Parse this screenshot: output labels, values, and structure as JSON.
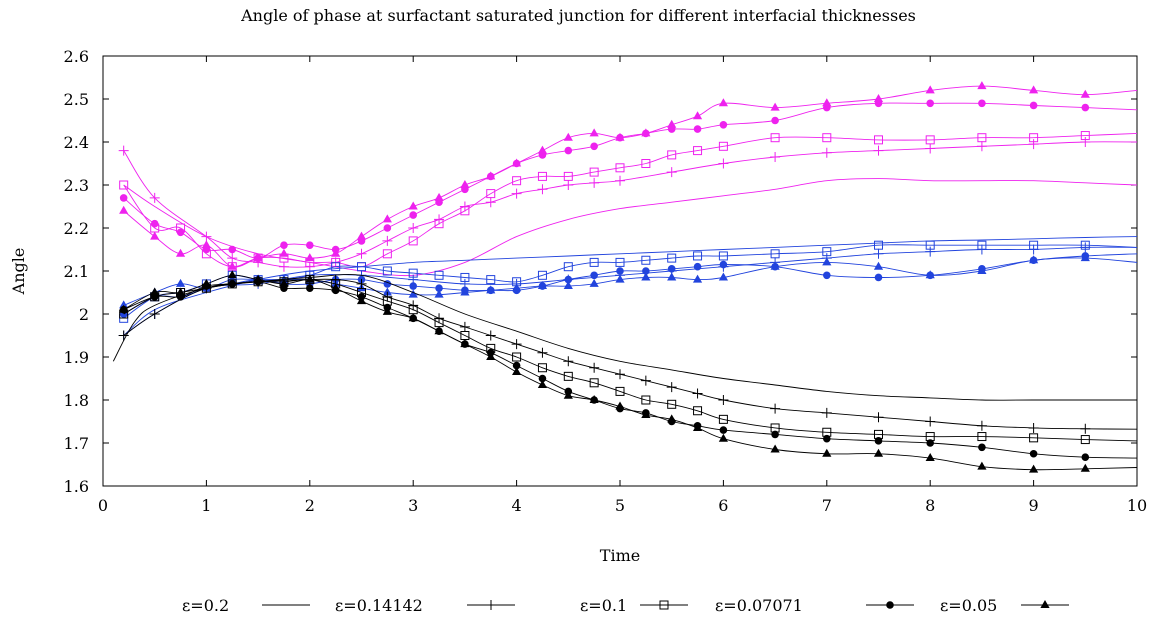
{
  "chart_data": {
    "type": "line",
    "title": "Angle of phase at surfactant saturated junction for different interfacial thicknesses",
    "xlabel": "Time",
    "ylabel": "Angle",
    "xlim": [
      0,
      10
    ],
    "ylim": [
      1.6,
      2.6
    ],
    "xticks": [
      "0",
      "1",
      "2",
      "3",
      "4",
      "5",
      "6",
      "7",
      "8",
      "9",
      "10"
    ],
    "yticks": [
      "1.6",
      "1.7",
      "1.8",
      "1.9",
      "2",
      "2.1",
      "2.2",
      "2.3",
      "2.4",
      "2.5",
      "2.6"
    ],
    "grid": false,
    "legend_position": "bottom",
    "legend": [
      {
        "label": "ε=0.2",
        "marker": "none"
      },
      {
        "label": "ε=0.14142",
        "marker": "plus"
      },
      {
        "label": "ε=0.1",
        "marker": "square"
      },
      {
        "label": "ε=0.07071",
        "marker": "circle"
      },
      {
        "label": "ε=0.05",
        "marker": "triangle"
      }
    ],
    "colors": {
      "magenta": "#ee22ee",
      "blue": "#2244dd",
      "black": "#000000"
    },
    "series": [
      {
        "group": "magenta",
        "marker": "none",
        "x": [
          0.2,
          0.5,
          1,
          1.5,
          2,
          2.5,
          3,
          3.5,
          4,
          4.5,
          5,
          5.5,
          6,
          6.5,
          7,
          7.5,
          8,
          8.5,
          9,
          9.5,
          10
        ],
        "y": [
          2.3,
          2.25,
          2.18,
          2.14,
          2.12,
          2.1,
          2.09,
          2.12,
          2.18,
          2.22,
          2.245,
          2.26,
          2.275,
          2.29,
          2.31,
          2.315,
          2.31,
          2.31,
          2.31,
          2.305,
          2.3
        ]
      },
      {
        "group": "magenta",
        "marker": "plus",
        "x": [
          0.2,
          0.5,
          1,
          1.25,
          1.5,
          1.75,
          2,
          2.25,
          2.5,
          2.75,
          3,
          3.25,
          3.5,
          3.75,
          4,
          4.25,
          4.5,
          4.75,
          5,
          5.5,
          6,
          6.5,
          7,
          7.5,
          8,
          8.5,
          9,
          9.5,
          10
        ],
        "y": [
          2.38,
          2.27,
          2.18,
          2.13,
          2.12,
          2.11,
          2.11,
          2.12,
          2.14,
          2.17,
          2.2,
          2.22,
          2.25,
          2.26,
          2.28,
          2.29,
          2.3,
          2.305,
          2.31,
          2.33,
          2.35,
          2.365,
          2.375,
          2.38,
          2.385,
          2.39,
          2.395,
          2.4,
          2.4
        ]
      },
      {
        "group": "magenta",
        "marker": "square",
        "x": [
          0.2,
          0.5,
          0.75,
          1,
          1.25,
          1.5,
          1.75,
          2,
          2.25,
          2.5,
          2.75,
          3,
          3.25,
          3.5,
          3.75,
          4,
          4.25,
          4.5,
          4.75,
          5,
          5.25,
          5.5,
          5.75,
          6,
          6.5,
          7,
          7.5,
          8,
          8.5,
          9,
          9.5,
          10
        ],
        "y": [
          2.3,
          2.2,
          2.2,
          2.14,
          2.11,
          2.13,
          2.13,
          2.12,
          2.12,
          2.11,
          2.14,
          2.17,
          2.21,
          2.24,
          2.28,
          2.31,
          2.32,
          2.32,
          2.33,
          2.34,
          2.35,
          2.37,
          2.38,
          2.39,
          2.41,
          2.41,
          2.405,
          2.405,
          2.41,
          2.41,
          2.415,
          2.42
        ]
      },
      {
        "group": "magenta",
        "marker": "circle",
        "x": [
          0.2,
          0.5,
          0.75,
          1,
          1.25,
          1.5,
          1.75,
          2,
          2.25,
          2.5,
          2.75,
          3,
          3.25,
          3.5,
          3.75,
          4,
          4.25,
          4.5,
          4.75,
          5,
          5.25,
          5.5,
          5.75,
          6,
          6.5,
          7,
          7.5,
          8,
          8.5,
          9,
          9.5,
          10
        ],
        "y": [
          2.27,
          2.21,
          2.19,
          2.15,
          2.15,
          2.13,
          2.16,
          2.16,
          2.15,
          2.17,
          2.2,
          2.23,
          2.26,
          2.29,
          2.32,
          2.35,
          2.37,
          2.38,
          2.39,
          2.41,
          2.42,
          2.43,
          2.43,
          2.44,
          2.45,
          2.48,
          2.49,
          2.49,
          2.49,
          2.485,
          2.48,
          2.475
        ]
      },
      {
        "group": "magenta",
        "marker": "triangle",
        "x": [
          0.2,
          0.5,
          0.75,
          1,
          1.25,
          1.5,
          1.75,
          2,
          2.25,
          2.5,
          2.75,
          3,
          3.25,
          3.5,
          3.75,
          4,
          4.25,
          4.5,
          4.75,
          5,
          5.25,
          5.5,
          5.75,
          6,
          6.5,
          7,
          7.5,
          8,
          8.5,
          9,
          9.5,
          10
        ],
        "y": [
          2.24,
          2.18,
          2.14,
          2.16,
          2.11,
          2.13,
          2.14,
          2.13,
          2.14,
          2.18,
          2.22,
          2.25,
          2.27,
          2.3,
          2.32,
          2.35,
          2.38,
          2.41,
          2.42,
          2.41,
          2.42,
          2.44,
          2.46,
          2.49,
          2.48,
          2.49,
          2.5,
          2.52,
          2.53,
          2.52,
          2.51,
          2.52
        ]
      },
      {
        "group": "blue",
        "marker": "none",
        "x": [
          0.2,
          0.5,
          1,
          1.5,
          2,
          2.5,
          3,
          3.5,
          4,
          4.5,
          5,
          5.5,
          6,
          6.5,
          7,
          7.5,
          8,
          8.5,
          9,
          9.5,
          10
        ],
        "y": [
          1.95,
          2.01,
          2.05,
          2.08,
          2.1,
          2.11,
          2.12,
          2.125,
          2.13,
          2.135,
          2.14,
          2.145,
          2.15,
          2.155,
          2.16,
          2.165,
          2.17,
          2.172,
          2.175,
          2.178,
          2.18
        ]
      },
      {
        "group": "blue",
        "marker": "plus",
        "x": [
          0.2,
          0.5,
          1,
          1.5,
          2,
          2.5,
          3,
          3.5,
          4,
          4.5,
          5,
          5.5,
          6,
          6.5,
          7,
          7.5,
          8,
          8.5,
          9,
          9.5,
          10
        ],
        "y": [
          1.95,
          2.0,
          2.06,
          2.07,
          2.09,
          2.09,
          2.08,
          2.07,
          2.07,
          2.08,
          2.09,
          2.1,
          2.11,
          2.12,
          2.13,
          2.14,
          2.145,
          2.15,
          2.15,
          2.155,
          2.155
        ]
      },
      {
        "group": "blue",
        "marker": "square",
        "x": [
          0.2,
          0.5,
          0.75,
          1,
          1.25,
          1.5,
          1.75,
          2,
          2.25,
          2.5,
          2.75,
          3,
          3.25,
          3.5,
          3.75,
          4,
          4.25,
          4.5,
          4.75,
          5,
          5.25,
          5.5,
          5.75,
          6,
          6.5,
          7,
          7.5,
          8,
          8.5,
          9,
          9.5,
          10
        ],
        "y": [
          1.99,
          2.04,
          2.05,
          2.07,
          2.09,
          2.08,
          2.08,
          2.09,
          2.11,
          2.11,
          2.1,
          2.095,
          2.09,
          2.085,
          2.08,
          2.075,
          2.09,
          2.11,
          2.12,
          2.12,
          2.125,
          2.13,
          2.135,
          2.135,
          2.14,
          2.145,
          2.16,
          2.16,
          2.16,
          2.16,
          2.16,
          2.155
        ]
      },
      {
        "group": "blue",
        "marker": "circle",
        "x": [
          0.2,
          0.5,
          0.75,
          1,
          1.25,
          1.5,
          1.75,
          2,
          2.25,
          2.5,
          2.75,
          3,
          3.25,
          3.5,
          3.75,
          4,
          4.25,
          4.5,
          4.75,
          5,
          5.25,
          5.5,
          5.75,
          6,
          6.5,
          7,
          7.5,
          8,
          8.5,
          9,
          9.5,
          10
        ],
        "y": [
          2.0,
          2.04,
          2.04,
          2.06,
          2.07,
          2.08,
          2.07,
          2.07,
          2.08,
          2.08,
          2.07,
          2.065,
          2.06,
          2.055,
          2.055,
          2.055,
          2.065,
          2.08,
          2.09,
          2.1,
          2.1,
          2.105,
          2.11,
          2.115,
          2.11,
          2.09,
          2.085,
          2.09,
          2.105,
          2.125,
          2.135,
          2.14
        ]
      },
      {
        "group": "blue",
        "marker": "triangle",
        "x": [
          0.2,
          0.5,
          0.75,
          1,
          1.25,
          1.5,
          1.75,
          2,
          2.25,
          2.5,
          2.75,
          3,
          3.25,
          3.5,
          3.75,
          4,
          4.25,
          4.5,
          4.75,
          5,
          5.25,
          5.5,
          5.75,
          6,
          6.5,
          7,
          7.5,
          8,
          8.5,
          9,
          9.5,
          10
        ],
        "y": [
          2.02,
          2.05,
          2.07,
          2.06,
          2.08,
          2.08,
          2.08,
          2.08,
          2.07,
          2.06,
          2.05,
          2.045,
          2.045,
          2.05,
          2.055,
          2.06,
          2.065,
          2.065,
          2.07,
          2.08,
          2.085,
          2.085,
          2.08,
          2.085,
          2.11,
          2.12,
          2.11,
          2.09,
          2.1,
          2.125,
          2.13,
          2.12
        ]
      },
      {
        "group": "black",
        "marker": "none",
        "x": [
          0.1,
          0.3,
          0.5,
          1,
          1.5,
          2,
          2.5,
          3,
          3.5,
          4,
          4.5,
          5,
          5.5,
          6,
          6.5,
          7,
          7.5,
          8,
          8.5,
          9,
          9.5,
          10
        ],
        "y": [
          1.89,
          1.98,
          2.02,
          2.06,
          2.075,
          2.085,
          2.09,
          2.05,
          2.0,
          1.96,
          1.92,
          1.89,
          1.87,
          1.85,
          1.835,
          1.82,
          1.81,
          1.805,
          1.8,
          1.8,
          1.8,
          1.8
        ]
      },
      {
        "group": "black",
        "marker": "plus",
        "x": [
          0.2,
          0.5,
          1,
          1.5,
          2,
          2.25,
          2.5,
          2.75,
          3,
          3.25,
          3.5,
          3.75,
          4,
          4.25,
          4.5,
          4.75,
          5,
          5.25,
          5.5,
          5.75,
          6,
          6.5,
          7,
          7.5,
          8,
          8.5,
          9,
          9.5,
          10
        ],
        "y": [
          1.95,
          2.0,
          2.06,
          2.075,
          2.08,
          2.08,
          2.07,
          2.04,
          2.02,
          1.99,
          1.97,
          1.95,
          1.93,
          1.91,
          1.89,
          1.875,
          1.86,
          1.845,
          1.83,
          1.815,
          1.8,
          1.78,
          1.77,
          1.76,
          1.75,
          1.74,
          1.735,
          1.733,
          1.732
        ]
      },
      {
        "group": "black",
        "marker": "square",
        "x": [
          0.2,
          0.5,
          0.75,
          1,
          1.25,
          1.5,
          1.75,
          2,
          2.25,
          2.5,
          2.75,
          3,
          3.25,
          3.5,
          3.75,
          4,
          4.25,
          4.5,
          4.75,
          5,
          5.25,
          5.5,
          5.75,
          6,
          6.5,
          7,
          7.5,
          8,
          8.5,
          9,
          9.5,
          10
        ],
        "y": [
          2.0,
          2.04,
          2.05,
          2.06,
          2.07,
          2.075,
          2.075,
          2.08,
          2.07,
          2.05,
          2.03,
          2.01,
          1.98,
          1.95,
          1.92,
          1.9,
          1.875,
          1.855,
          1.84,
          1.82,
          1.8,
          1.79,
          1.775,
          1.755,
          1.735,
          1.725,
          1.72,
          1.715,
          1.715,
          1.712,
          1.708,
          1.705
        ]
      },
      {
        "group": "black",
        "marker": "circle",
        "x": [
          0.2,
          0.5,
          0.75,
          1,
          1.25,
          1.5,
          1.75,
          2,
          2.25,
          2.5,
          2.75,
          3,
          3.25,
          3.5,
          3.75,
          4,
          4.25,
          4.5,
          4.75,
          5,
          5.25,
          5.5,
          5.75,
          6,
          6.5,
          7,
          7.5,
          8,
          8.5,
          9,
          9.5,
          10
        ],
        "y": [
          2.01,
          2.04,
          2.04,
          2.065,
          2.07,
          2.075,
          2.06,
          2.06,
          2.055,
          2.04,
          2.015,
          1.99,
          1.96,
          1.93,
          1.91,
          1.88,
          1.85,
          1.82,
          1.8,
          1.78,
          1.77,
          1.75,
          1.74,
          1.73,
          1.72,
          1.71,
          1.705,
          1.7,
          1.69,
          1.675,
          1.667,
          1.665
        ]
      },
      {
        "group": "black",
        "marker": "triangle",
        "x": [
          0.2,
          0.5,
          0.75,
          1,
          1.25,
          1.5,
          1.75,
          2,
          2.25,
          2.5,
          2.75,
          3,
          3.25,
          3.5,
          3.75,
          4,
          4.25,
          4.5,
          4.75,
          5,
          5.25,
          5.5,
          5.75,
          6,
          6.5,
          7,
          7.5,
          8,
          8.5,
          9,
          9.5,
          10
        ],
        "y": [
          2.01,
          2.05,
          2.05,
          2.07,
          2.09,
          2.08,
          2.07,
          2.08,
          2.06,
          2.03,
          2.005,
          1.99,
          1.96,
          1.93,
          1.9,
          1.865,
          1.835,
          1.81,
          1.8,
          1.785,
          1.765,
          1.755,
          1.735,
          1.71,
          1.685,
          1.675,
          1.675,
          1.665,
          1.645,
          1.638,
          1.64,
          1.643
        ]
      }
    ]
  }
}
